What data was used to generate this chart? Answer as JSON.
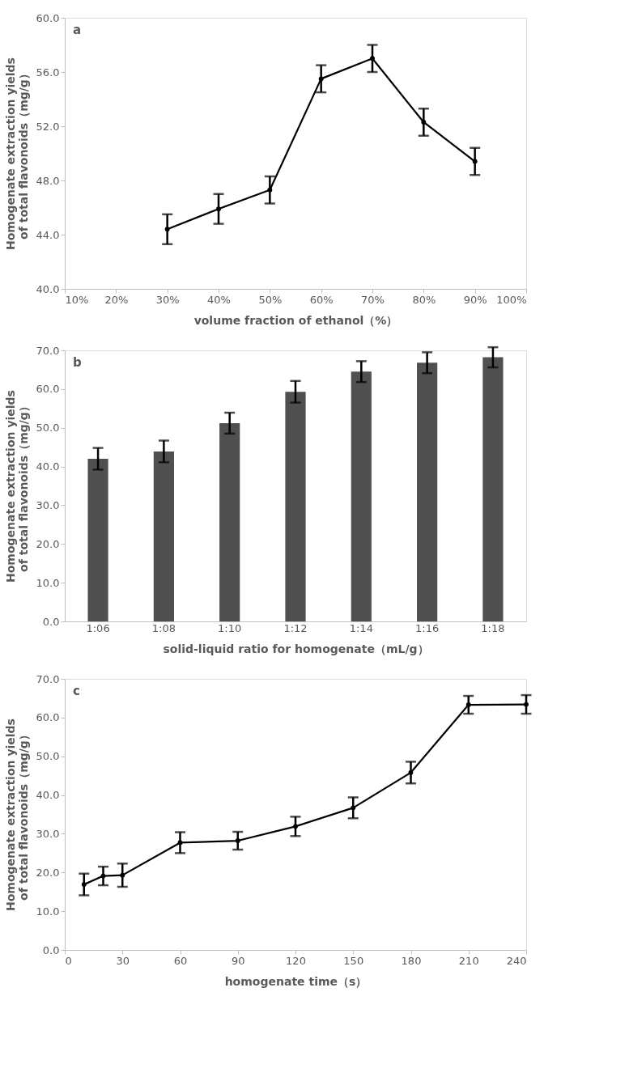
{
  "chart_data": [
    {
      "type": "line",
      "xlabel": "volume fraction of ethanol（%）",
      "ylabel": "Homogenate extraction yields of total flavonoids（mg/g）",
      "annotations": [
        "a"
      ],
      "x": [
        30,
        40,
        50,
        60,
        70,
        80,
        90
      ],
      "series": [
        {
          "color": "#000000",
          "values": [
            44.4,
            45.9,
            47.3,
            55.5,
            57.0,
            52.3,
            49.4
          ],
          "errors": [
            1.1,
            1.1,
            1.0,
            1.0,
            1.0,
            1.0,
            1.0
          ]
        }
      ],
      "xlim": [
        10,
        100
      ],
      "xticks": [
        {
          "value": 10,
          "label": "10%"
        },
        {
          "value": 20,
          "label": "20%"
        },
        {
          "value": 30,
          "label": "30%"
        },
        {
          "value": 40,
          "label": "40%"
        },
        {
          "value": 50,
          "label": "50%"
        },
        {
          "value": 60,
          "label": "60%"
        },
        {
          "value": 70,
          "label": "70%"
        },
        {
          "value": 80,
          "label": "80%"
        },
        {
          "value": 90,
          "label": "90%"
        },
        {
          "value": 100,
          "label": "100%"
        }
      ],
      "ylim": [
        40,
        60
      ],
      "yticks": [
        {
          "value": 40,
          "label": "40.0"
        },
        {
          "value": 44,
          "label": "44.0"
        },
        {
          "value": 48,
          "label": "48.0"
        },
        {
          "value": 52,
          "label": "52.0"
        },
        {
          "value": 56,
          "label": "56.0"
        },
        {
          "value": 60,
          "label": "60.0"
        }
      ],
      "marker": "circle",
      "grid": false
    },
    {
      "type": "bar",
      "xlabel": "solid-liquid ratio for homogenate（mL/g）",
      "ylabel": "Homogenate extraction yields of total flavonoids（mg/g）",
      "annotations": [
        "b"
      ],
      "categories": [
        "1:06",
        "1:08",
        "1:10",
        "1:12",
        "1:14",
        "1:16",
        "1:18"
      ],
      "series": [
        {
          "color": "#505050",
          "values": [
            42.0,
            43.9,
            51.2,
            59.3,
            64.5,
            66.8,
            68.2
          ],
          "errors": [
            2.8,
            2.8,
            2.7,
            2.8,
            2.7,
            2.7,
            2.6
          ]
        }
      ],
      "ylim": [
        0,
        70
      ],
      "yticks": [
        {
          "value": 0,
          "label": "0.0"
        },
        {
          "value": 10,
          "label": "10.0"
        },
        {
          "value": 20,
          "label": "20.0"
        },
        {
          "value": 30,
          "label": "30.0"
        },
        {
          "value": 40,
          "label": "40.0"
        },
        {
          "value": 50,
          "label": "50.0"
        },
        {
          "value": 60,
          "label": "60.0"
        },
        {
          "value": 70,
          "label": "70.0"
        }
      ],
      "grid": false
    },
    {
      "type": "line",
      "xlabel": "homogenate time（s）",
      "ylabel": "Homogenate extraction yields of total flavonoids（mg/g）",
      "annotations": [
        "c"
      ],
      "x": [
        10,
        20,
        30,
        60,
        90,
        120,
        150,
        180,
        210,
        240
      ],
      "series": [
        {
          "color": "#000000",
          "values": [
            16.9,
            19.1,
            19.3,
            27.7,
            28.2,
            31.9,
            36.7,
            45.8,
            63.3,
            63.4
          ],
          "errors": [
            2.8,
            2.4,
            3.0,
            2.7,
            2.3,
            2.5,
            2.7,
            2.8,
            2.3,
            2.4
          ]
        }
      ],
      "xlim": [
        0,
        240
      ],
      "xticks": [
        0,
        30,
        60,
        90,
        120,
        150,
        180,
        210,
        240
      ],
      "ylim": [
        0,
        70
      ],
      "yticks": [
        {
          "value": 0,
          "label": "0.0"
        },
        {
          "value": 10,
          "label": "10.0"
        },
        {
          "value": 20,
          "label": "20.0"
        },
        {
          "value": 30,
          "label": "30.0"
        },
        {
          "value": 40,
          "label": "40.0"
        },
        {
          "value": 50,
          "label": "50.0"
        },
        {
          "value": 60,
          "label": "60.0"
        },
        {
          "value": 70,
          "label": "70.0"
        }
      ],
      "marker": "circle",
      "grid": false
    }
  ]
}
